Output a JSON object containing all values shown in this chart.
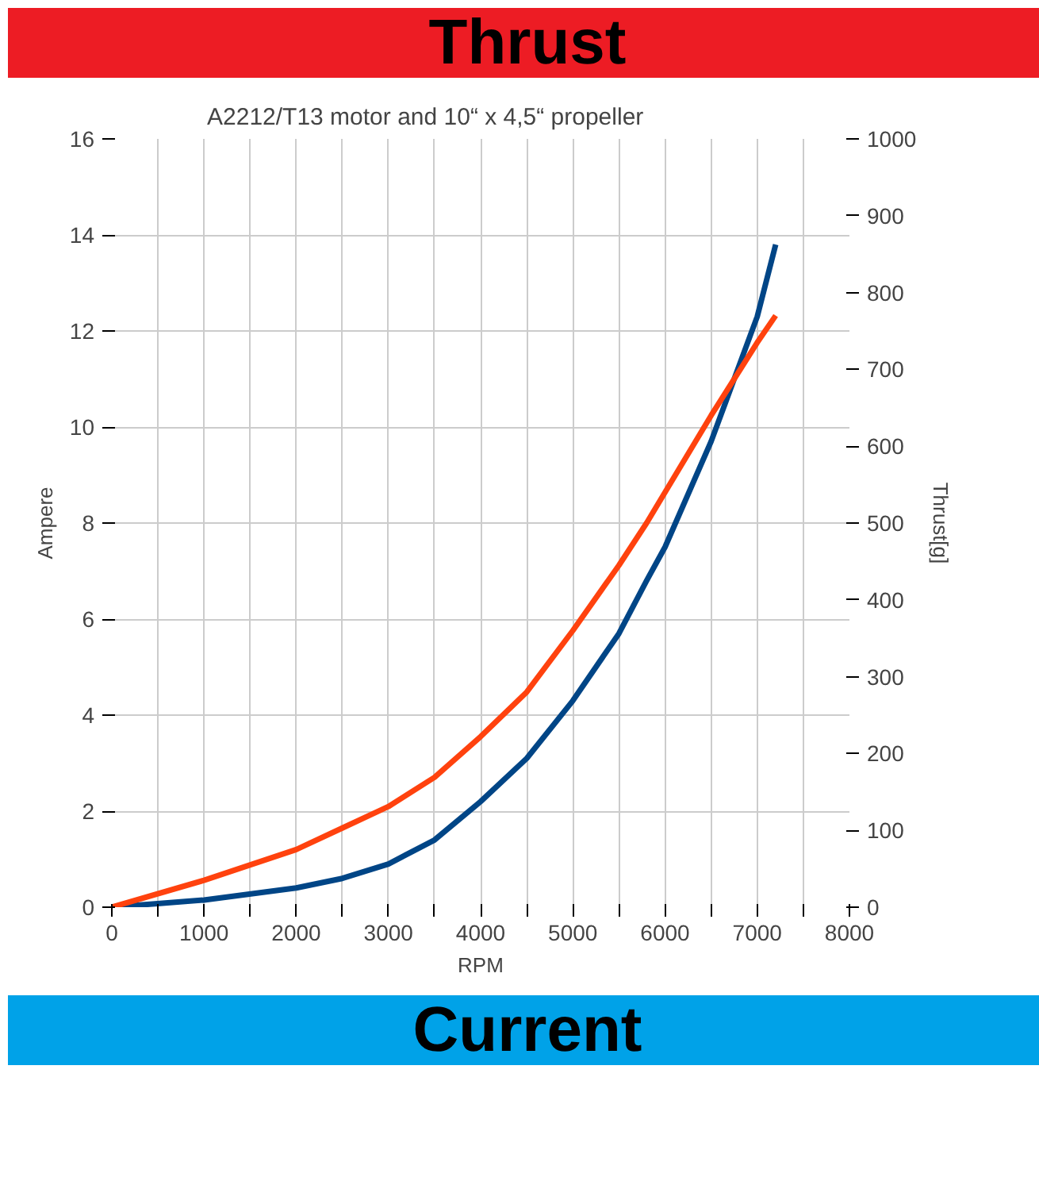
{
  "chart_data": {
    "type": "line",
    "title": "A2212/T13 motor and 10“ x 4,5“ propeller",
    "annotations": [
      "Thrust",
      "Current"
    ],
    "xlabel": "RPM",
    "ylabel": "Ampere",
    "y2label": "Thrust[g]",
    "x": [
      0,
      1000,
      2000,
      2500,
      3000,
      3500,
      4000,
      4500,
      5000,
      5500,
      5800,
      6000,
      6500,
      7000,
      7200
    ],
    "series": [
      {
        "color": "#004586",
        "values": [
          0,
          0.15,
          0.4,
          0.6,
          0.9,
          1.4,
          2.2,
          3.1,
          4.3,
          5.7,
          6.8,
          7.5,
          9.7,
          12.3,
          13.8
        ]
      },
      {
        "color": "#ff420e",
        "axis": "y2",
        "values": [
          0,
          35,
          75,
          103,
          131,
          169,
          222,
          280,
          360,
          445,
          500,
          540,
          640,
          735,
          770
        ]
      }
    ],
    "xlim": [
      0,
      8000
    ],
    "xticks": [
      0,
      {
        "value": 500,
        "label": null
      },
      1000,
      {
        "value": 1500,
        "label": null
      },
      2000,
      {
        "value": 2500,
        "label": null
      },
      3000,
      {
        "value": 3500,
        "label": null
      },
      4000,
      {
        "value": 4500,
        "label": null
      },
      5000,
      {
        "value": 5500,
        "label": null
      },
      6000,
      {
        "value": 6500,
        "label": null
      },
      7000,
      {
        "value": 7500,
        "label": null
      },
      8000
    ],
    "ylim": [
      0,
      16
    ],
    "yticks": [
      0,
      2,
      4,
      6,
      8,
      10,
      12,
      14,
      16
    ],
    "y2lim": [
      0,
      1000
    ],
    "y2ticks": [
      0,
      100,
      200,
      300,
      400,
      500,
      600,
      700,
      800,
      900,
      1000
    ],
    "grid": true,
    "line_style": "solid",
    "marker": "none"
  }
}
